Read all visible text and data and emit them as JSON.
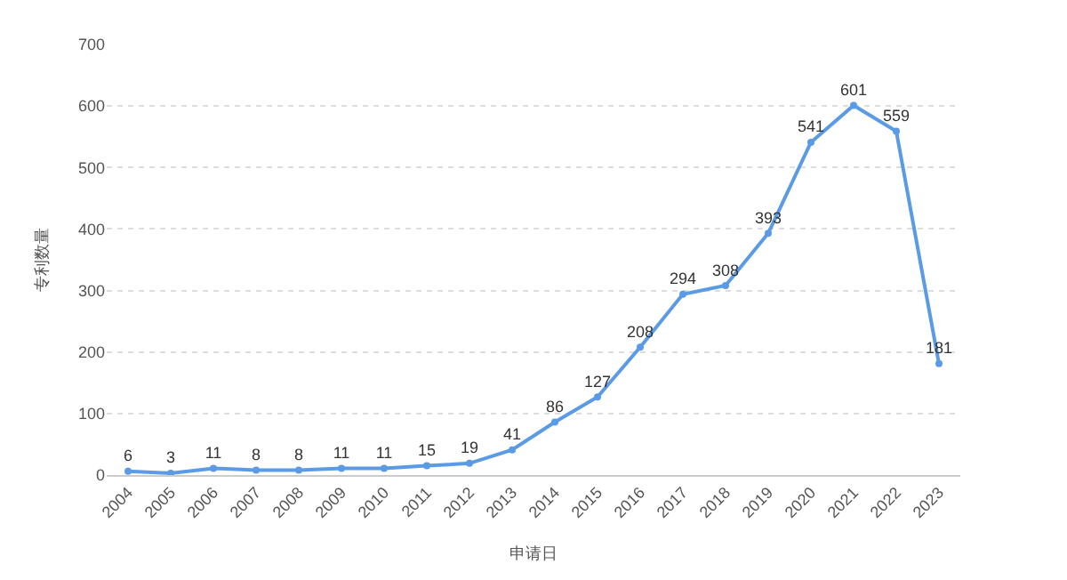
{
  "chart_data": {
    "type": "line",
    "xlabel": "申请日",
    "ylabel": "专利数量",
    "categories": [
      "2004",
      "2005",
      "2006",
      "2007",
      "2008",
      "2009",
      "2010",
      "2011",
      "2012",
      "2013",
      "2014",
      "2015",
      "2016",
      "2017",
      "2018",
      "2019",
      "2020",
      "2021",
      "2022",
      "2023"
    ],
    "series": [
      {
        "color": "#5b9be6",
        "values": [
          6,
          3,
          11,
          8,
          8,
          11,
          11,
          15,
          19,
          41,
          86,
          127,
          208,
          294,
          308,
          393,
          541,
          601,
          559,
          181
        ]
      }
    ],
    "ylim": [
      0,
      700
    ],
    "yticks": [
      0,
      100,
      200,
      300,
      400,
      500,
      600,
      700
    ],
    "grid": "y",
    "legend": false,
    "marker": "circle",
    "line_style": "solid",
    "data_labels": true
  }
}
